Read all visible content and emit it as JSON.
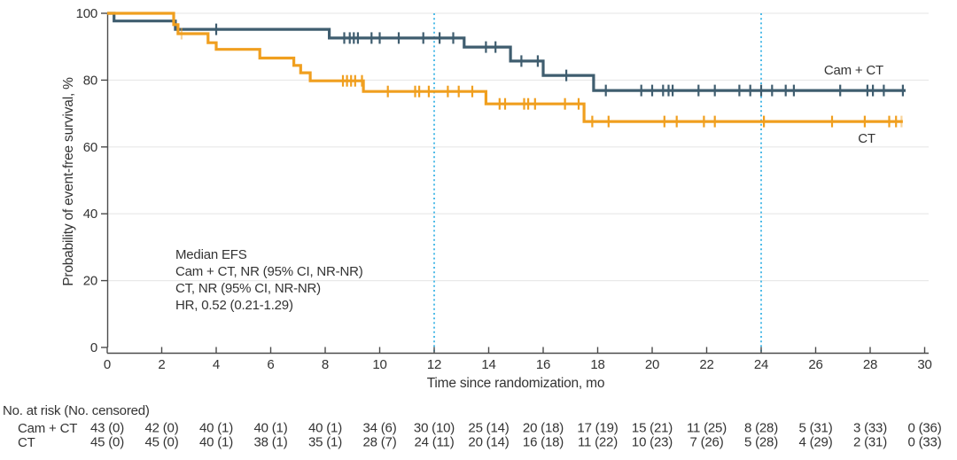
{
  "chart_data": {
    "type": "line",
    "subtype": "kaplan-meier-step",
    "xlabel": "Time since randomization, mo",
    "ylabel": "Probability of event-free survival, %",
    "xlim": [
      0,
      30
    ],
    "ylim": [
      0,
      100
    ],
    "xticks": [
      0,
      2,
      4,
      6,
      8,
      10,
      12,
      14,
      16,
      18,
      20,
      22,
      24,
      26,
      28,
      30
    ],
    "yticks": [
      0,
      20,
      40,
      60,
      80,
      100
    ],
    "grid": "horizontal",
    "legend_position": "inline-labels",
    "reference_lines_x": [
      12,
      24
    ],
    "colors": {
      "cam_ct": "#3f5d6f",
      "ct": "#f09f1f",
      "reference": "#3cb5e6",
      "grid": "#e9e9e9",
      "axis": "#4b4b4b",
      "text": "#333333"
    },
    "annotation": {
      "lines": [
        "Median EFS",
        "Cam + CT, NR (95% CI, NR-NR)",
        "CT, NR (95% CI, NR-NR)",
        "HR, 0.52 (0.21-1.29)"
      ]
    },
    "series": [
      {
        "name": "Cam + CT",
        "label": "Cam + CT",
        "color": "#3f5d6f",
        "steps": [
          [
            0,
            100
          ],
          [
            0.25,
            97.7
          ],
          [
            2.5,
            95.2
          ],
          [
            8.15,
            92.6
          ],
          [
            13.1,
            89.9
          ],
          [
            14.8,
            85.7
          ],
          [
            16.0,
            81.4
          ],
          [
            17.85,
            76.9
          ]
        ],
        "end_x": 29.3,
        "censors": [
          [
            4.0,
            95.2
          ],
          [
            8.7,
            92.6
          ],
          [
            8.9,
            92.6
          ],
          [
            9.05,
            92.6
          ],
          [
            9.2,
            92.6
          ],
          [
            9.7,
            92.6
          ],
          [
            10.0,
            92.6
          ],
          [
            10.7,
            92.6
          ],
          [
            11.6,
            92.6
          ],
          [
            12.2,
            92.6
          ],
          [
            12.7,
            92.6
          ],
          [
            13.9,
            89.9
          ],
          [
            14.25,
            89.9
          ],
          [
            15.2,
            85.7
          ],
          [
            15.8,
            85.7
          ],
          [
            16.85,
            81.4
          ],
          [
            18.3,
            76.9
          ],
          [
            19.6,
            76.9
          ],
          [
            20.0,
            76.9
          ],
          [
            20.4,
            76.9
          ],
          [
            20.6,
            76.9
          ],
          [
            20.75,
            76.9
          ],
          [
            21.7,
            76.9
          ],
          [
            22.3,
            76.9
          ],
          [
            23.2,
            76.9
          ],
          [
            23.6,
            76.9
          ],
          [
            24.0,
            76.9
          ],
          [
            24.4,
            76.9
          ],
          [
            24.9,
            76.9
          ],
          [
            25.2,
            76.9
          ],
          [
            26.9,
            76.9
          ],
          [
            27.9,
            76.9
          ],
          [
            28.1,
            76.9
          ],
          [
            28.5,
            76.9
          ],
          [
            29.2,
            76.9
          ]
        ]
      },
      {
        "name": "CT",
        "label": "CT",
        "color": "#f09f1f",
        "steps": [
          [
            0,
            100
          ],
          [
            2.44,
            96.6
          ],
          [
            2.6,
            93.9
          ],
          [
            3.7,
            91.2
          ],
          [
            4.0,
            89.2
          ],
          [
            5.6,
            86.6
          ],
          [
            6.85,
            84.4
          ],
          [
            7.1,
            82.2
          ],
          [
            7.45,
            79.8
          ],
          [
            9.4,
            76.6
          ],
          [
            13.9,
            72.9
          ],
          [
            17.5,
            67.6
          ]
        ],
        "end_x": 29.2,
        "censors": [
          [
            2.73,
            93.9,
            1
          ],
          [
            8.65,
            79.8
          ],
          [
            8.8,
            79.8
          ],
          [
            8.95,
            79.8
          ],
          [
            9.1,
            79.8
          ],
          [
            9.35,
            79.8
          ],
          [
            10.3,
            76.6
          ],
          [
            11.3,
            76.6
          ],
          [
            11.45,
            76.6
          ],
          [
            11.8,
            76.6
          ],
          [
            12.5,
            76.6
          ],
          [
            12.9,
            76.6
          ],
          [
            13.4,
            76.6
          ],
          [
            14.4,
            72.9
          ],
          [
            14.6,
            72.9
          ],
          [
            15.3,
            72.9
          ],
          [
            15.45,
            72.9
          ],
          [
            15.7,
            72.9
          ],
          [
            16.8,
            72.9
          ],
          [
            17.3,
            72.9
          ],
          [
            17.8,
            67.6
          ],
          [
            18.4,
            67.6
          ],
          [
            20.45,
            67.6
          ],
          [
            20.9,
            67.6
          ],
          [
            21.9,
            67.6
          ],
          [
            22.3,
            67.6
          ],
          [
            24.1,
            67.6
          ],
          [
            26.6,
            67.6
          ],
          [
            27.8,
            67.6
          ],
          [
            28.7,
            67.6
          ],
          [
            28.95,
            67.6
          ],
          [
            29.15,
            67.6,
            1
          ]
        ]
      }
    ],
    "risk_table": {
      "header": "No. at risk (No. censored)",
      "times": [
        0,
        2,
        4,
        6,
        8,
        10,
        12,
        14,
        16,
        18,
        20,
        22,
        24,
        26,
        28,
        30
      ],
      "rows": [
        {
          "label": "Cam + CT",
          "values": [
            "43 (0)",
            "42 (0)",
            "40 (1)",
            "40 (1)",
            "40 (1)",
            "34 (6)",
            "30 (10)",
            "25 (14)",
            "20 (18)",
            "17 (19)",
            "15 (21)",
            "11 (25)",
            "8 (28)",
            "5 (31)",
            "3 (33)",
            "0 (36)"
          ]
        },
        {
          "label": "CT",
          "values": [
            "45 (0)",
            "45 (0)",
            "40 (1)",
            "38 (1)",
            "35 (1)",
            "28 (7)",
            "24 (11)",
            "20 (14)",
            "16 (18)",
            "11 (22)",
            "10 (23)",
            "7 (26)",
            "5 (28)",
            "4 (29)",
            "2 (31)",
            "0 (33)"
          ]
        }
      ]
    }
  }
}
